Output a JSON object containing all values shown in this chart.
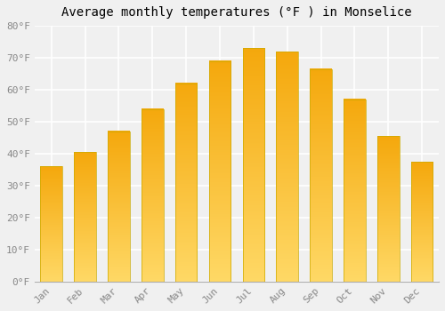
{
  "title": "Average monthly temperatures (°F ) in Monselice",
  "months": [
    "Jan",
    "Feb",
    "Mar",
    "Apr",
    "May",
    "Jun",
    "Jul",
    "Aug",
    "Sep",
    "Oct",
    "Nov",
    "Dec"
  ],
  "values": [
    36,
    40.5,
    47,
    54,
    62,
    69,
    73,
    72,
    66.5,
    57,
    45.5,
    37.5
  ],
  "bar_color_top": "#F5A800",
  "bar_color_bottom": "#FFD966",
  "ylim": [
    0,
    80
  ],
  "yticks": [
    0,
    10,
    20,
    30,
    40,
    50,
    60,
    70,
    80
  ],
  "ytick_labels": [
    "0°F",
    "10°F",
    "20°F",
    "30°F",
    "40°F",
    "50°F",
    "60°F",
    "70°F",
    "80°F"
  ],
  "background_color": "#f0f0f0",
  "grid_color": "#ffffff",
  "title_fontsize": 10,
  "tick_fontsize": 8,
  "font_family": "monospace"
}
